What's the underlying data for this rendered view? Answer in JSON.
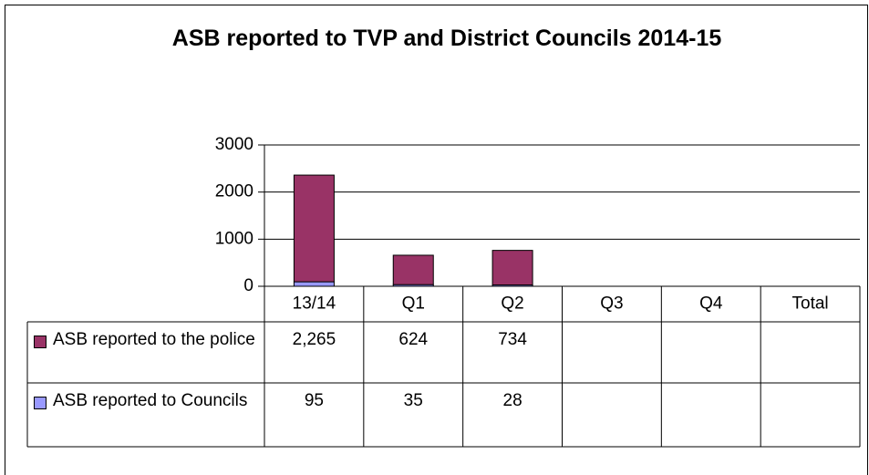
{
  "chart_data": {
    "type": "bar",
    "stacked": true,
    "title": "ASB reported to TVP and District Councils 2014-15",
    "categories": [
      "13/14",
      "Q1",
      "Q2",
      "Q3",
      "Q4",
      "Total"
    ],
    "series": [
      {
        "name": "ASB reported to Councils",
        "color": "#9999ff",
        "values": [
          95,
          35,
          28,
          null,
          null,
          null
        ]
      },
      {
        "name": "ASB reported to the police",
        "color": "#993366",
        "values": [
          2265,
          624,
          734,
          null,
          null,
          null
        ],
        "value_labels": [
          "2,265",
          "624",
          "734",
          null,
          null,
          null
        ]
      }
    ],
    "ylim": [
      0,
      3000
    ],
    "yticks": [
      0,
      1000,
      2000,
      3000
    ],
    "grid": true,
    "data_table": true
  }
}
